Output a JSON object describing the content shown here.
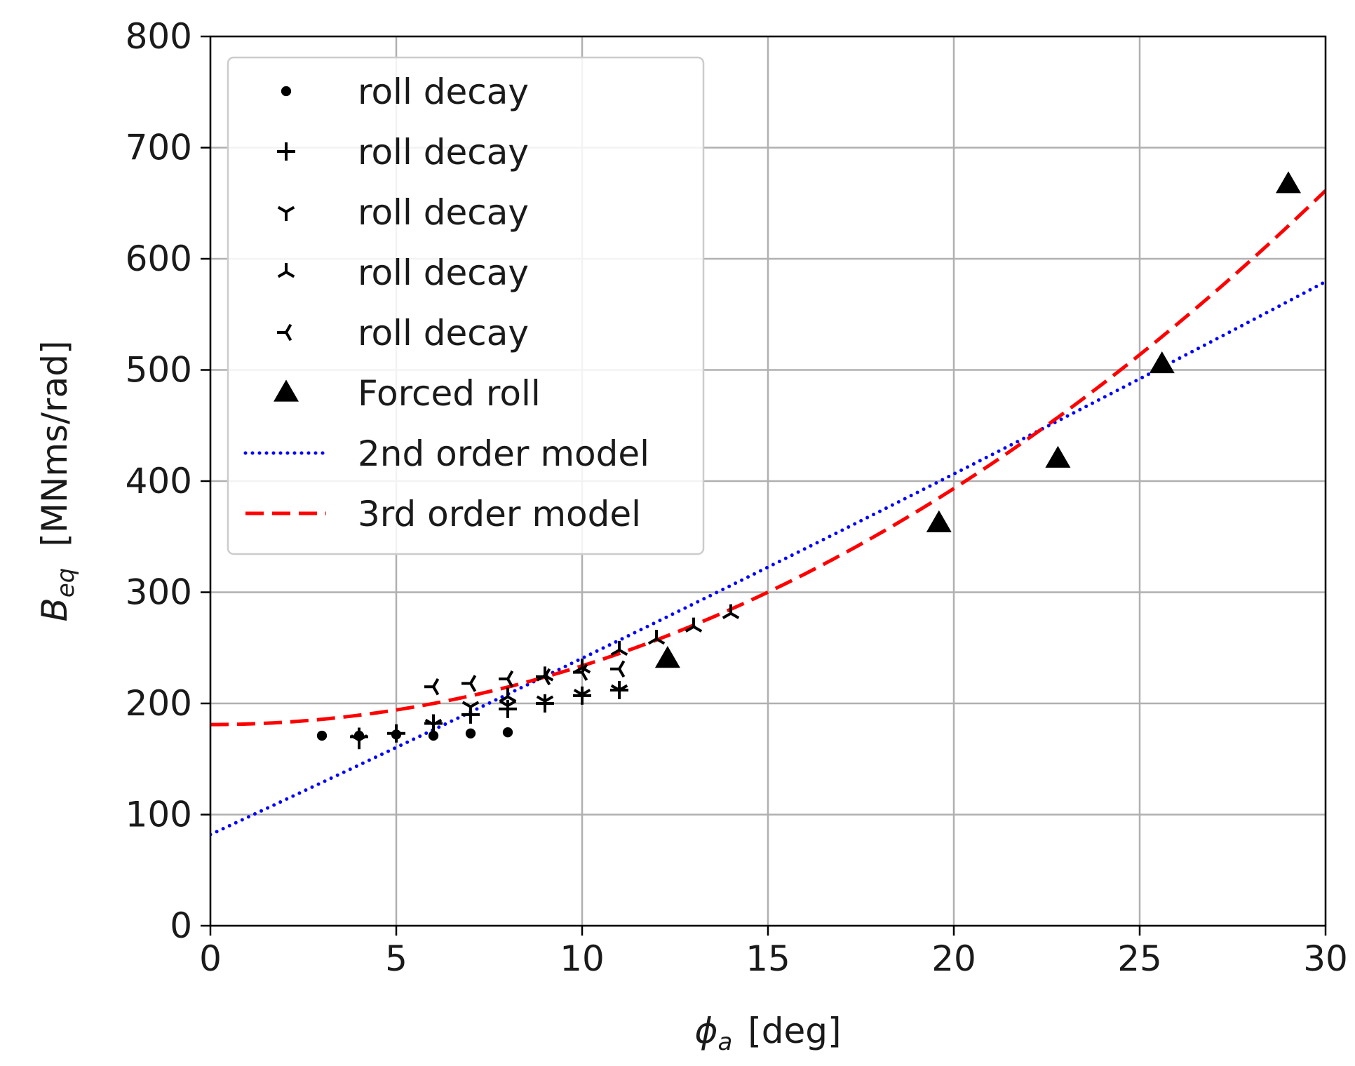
{
  "chart_data": {
    "type": "scatter",
    "xlabel": {
      "symbol": "ϕ",
      "subscript": "a",
      "unit": "[deg]"
    },
    "ylabel": {
      "symbol": "B",
      "subscript": "eq",
      "unit": "[MNms/rad]"
    },
    "xlim": [
      0,
      30
    ],
    "ylim": [
      0,
      800
    ],
    "xticks": [
      0,
      5,
      10,
      15,
      20,
      25,
      30
    ],
    "yticks": [
      0,
      100,
      200,
      300,
      400,
      500,
      600,
      700,
      800
    ],
    "grid": true,
    "legend_position": "upper-left",
    "series": [
      {
        "name": "roll decay",
        "marker": "circle",
        "color": "#000000",
        "points": [
          [
            3,
            171
          ],
          [
            4,
            171
          ],
          [
            5,
            172
          ],
          [
            6,
            171
          ],
          [
            7,
            173
          ],
          [
            8,
            174
          ]
        ]
      },
      {
        "name": "roll decay",
        "marker": "plus",
        "color": "#000000",
        "points": [
          [
            4,
            170
          ],
          [
            5,
            173
          ],
          [
            6,
            182
          ],
          [
            7,
            190
          ],
          [
            8,
            195
          ],
          [
            9,
            200
          ],
          [
            10,
            207
          ],
          [
            11,
            212
          ]
        ]
      },
      {
        "name": "roll decay",
        "marker": "tri_down",
        "color": "#000000",
        "points": [
          [
            4,
            167
          ],
          [
            6,
            181
          ],
          [
            7,
            197
          ],
          [
            8,
            198
          ],
          [
            9,
            202
          ],
          [
            10,
            208
          ],
          [
            11,
            212
          ]
        ]
      },
      {
        "name": "roll decay",
        "marker": "tri_up",
        "color": "#000000",
        "points": [
          [
            8,
            206
          ],
          [
            9,
            225
          ],
          [
            10,
            232
          ],
          [
            11,
            248
          ],
          [
            12,
            258
          ],
          [
            13,
            269
          ],
          [
            14,
            281
          ]
        ]
      },
      {
        "name": "roll decay",
        "marker": "tri_left",
        "color": "#000000",
        "points": [
          [
            6,
            215
          ],
          [
            7,
            218
          ],
          [
            8,
            222
          ],
          [
            9,
            224
          ],
          [
            10,
            228
          ],
          [
            11,
            231
          ]
        ]
      },
      {
        "name": "Forced roll",
        "marker": "triangle",
        "color": "#000000",
        "points": [
          [
            12.3,
            240
          ],
          [
            19.6,
            362
          ],
          [
            22.8,
            420
          ],
          [
            25.6,
            505
          ],
          [
            29,
            667
          ]
        ]
      },
      {
        "name": "2nd order model",
        "style": "dotted",
        "color": "#0000ff",
        "coefficients": [
          82,
          15.5,
          0.036
        ]
      },
      {
        "name": "3rd order model",
        "style": "dashed",
        "color": "#ff0000",
        "coefficients": [
          181,
          0,
          0.525,
          0.00029
        ]
      }
    ]
  }
}
